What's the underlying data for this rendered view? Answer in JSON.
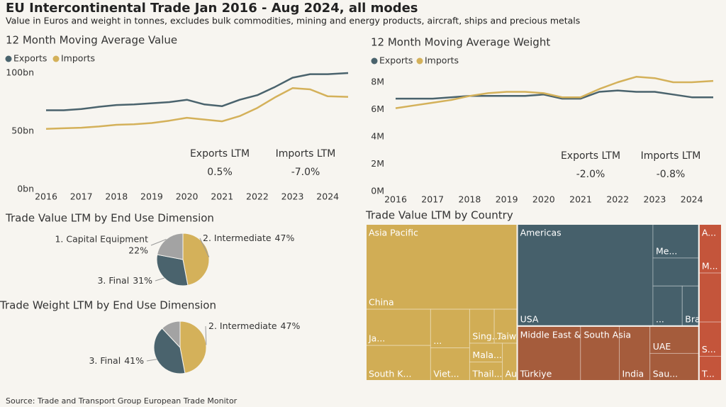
{
  "title": "EU Intercontinental Trade Jan 2016 - Aug 2024, all modes",
  "subtitle": "Value in Euros and weight in tonnes, excludes bulk commodities, mining and energy products, aircraft, ships and precious metals",
  "source": "Source: Trade and Transport Group European Trade Monitor",
  "chart_data": [
    {
      "type": "line",
      "title": "12 Month Moving Average Value",
      "x": [
        2016,
        2016.5,
        2017,
        2017.5,
        2018,
        2018.5,
        2019,
        2019.5,
        2020,
        2020.5,
        2021,
        2021.5,
        2022,
        2022.5,
        2023,
        2023.5,
        2024,
        2024.58
      ],
      "xlim": [
        2016,
        2024.6
      ],
      "xticks": [
        2016,
        2017,
        2018,
        2019,
        2020,
        2021,
        2022,
        2023,
        2024
      ],
      "ylim": [
        0,
        100
      ],
      "yticks": [
        {
          "value": 0,
          "label": "0bn"
        },
        {
          "value": 50,
          "label": "50bn"
        },
        {
          "value": 100,
          "label": "100bn"
        }
      ],
      "series": [
        {
          "name": "Exports",
          "color": "#4a636d",
          "values": [
            68,
            68,
            69,
            71,
            72.5,
            73,
            74,
            75,
            77,
            73,
            71.5,
            77,
            81,
            88,
            96,
            99,
            99,
            100
          ]
        },
        {
          "name": "Imports",
          "color": "#d4b15a",
          "values": [
            52,
            52.5,
            53,
            54,
            55.5,
            56,
            57,
            59,
            61.5,
            60,
            58.5,
            63,
            70,
            79,
            87,
            86,
            80,
            79.5
          ]
        }
      ],
      "annotations": [
        {
          "label": "Exports LTM",
          "value": 0.5,
          "value_label": "0.5%"
        },
        {
          "label": "Imports LTM",
          "value": -7.0,
          "value_label": "-7.0%"
        }
      ]
    },
    {
      "type": "line",
      "title": "12 Month Moving Average Weight",
      "x": [
        2016,
        2016.5,
        2017,
        2017.5,
        2018,
        2018.5,
        2019,
        2019.5,
        2020,
        2020.5,
        2021,
        2021.5,
        2022,
        2022.5,
        2023,
        2023.5,
        2024,
        2024.58
      ],
      "xlim": [
        2016,
        2024.6
      ],
      "xticks": [
        2016,
        2017,
        2018,
        2019,
        2020,
        2021,
        2022,
        2023,
        2024
      ],
      "ylim": [
        0,
        8.8
      ],
      "yticks": [
        {
          "value": 0,
          "label": "0M"
        },
        {
          "value": 2,
          "label": "2M"
        },
        {
          "value": 4,
          "label": "4M"
        },
        {
          "value": 6,
          "label": "6M"
        },
        {
          "value": 8,
          "label": "8M"
        }
      ],
      "series": [
        {
          "name": "Exports",
          "color": "#4a636d",
          "values": [
            6.8,
            6.8,
            6.8,
            6.9,
            7.0,
            7.0,
            7.0,
            7.0,
            7.1,
            6.8,
            6.8,
            7.3,
            7.4,
            7.3,
            7.3,
            7.1,
            6.9,
            6.9
          ]
        },
        {
          "name": "Imports",
          "color": "#d4b15a",
          "values": [
            6.1,
            6.3,
            6.5,
            6.7,
            7.0,
            7.2,
            7.3,
            7.3,
            7.2,
            6.9,
            6.9,
            7.5,
            8.0,
            8.4,
            8.3,
            8.0,
            8.0,
            8.1
          ]
        }
      ],
      "annotations": [
        {
          "label": "Exports LTM",
          "value": -2.0,
          "value_label": "-2.0%"
        },
        {
          "label": "Imports LTM",
          "value": -0.8,
          "value_label": "-0.8%"
        }
      ]
    },
    {
      "type": "pie",
      "title": "Trade Value LTM by End Use Dimension",
      "categories": [
        "2. Intermediate",
        "3. Final",
        "1. Capital Equipment"
      ],
      "values": [
        47,
        31,
        22
      ],
      "value_labels": [
        "47%",
        "31%",
        "22%"
      ],
      "colors": [
        "#d4b15a",
        "#4a636d",
        "#a3a3a3"
      ]
    },
    {
      "type": "pie",
      "title": "Trade Weight LTM by End Use Dimension",
      "categories": [
        "2. Intermediate",
        "3. Final",
        null
      ],
      "values": [
        47,
        41,
        12
      ],
      "value_labels": [
        "47%",
        "41%",
        null
      ],
      "colors": [
        "#d4b15a",
        "#4a636d",
        "#a3a3a3"
      ]
    },
    {
      "type": "treemap",
      "title": "Trade Value LTM by Country",
      "series": [
        {
          "name": "Asia Pacific",
          "color": "#d1ad55",
          "categories": [
            "China",
            "Ja...",
            "South K...",
            "...",
            "Viet...",
            "Sing...",
            "Taiwan",
            "Mala...",
            "Thail...",
            "Aus..."
          ],
          "values": [
            231,
            42,
            41,
            27,
            23,
            15,
            14,
            11,
            11,
            10
          ]
        },
        {
          "name": "Americas",
          "color": "#46606b",
          "categories": [
            "USA",
            "Me...",
            null,
            "...",
            "Brazil"
          ],
          "values": [
            248,
            28,
            23,
            21,
            12
          ]
        },
        {
          "name": "Middle East & South Asia",
          "color": "#a55c3c",
          "categories": [
            "Türkiye",
            null,
            "India",
            "UAE",
            "Sau..."
          ],
          "values": [
            62,
            38,
            30,
            24,
            24
          ]
        },
        {
          "name": "A...",
          "color": "#c4553b",
          "categories": [
            "M...",
            null,
            "S...",
            "T..."
          ],
          "values": [
            20,
            20,
            14,
            10
          ]
        }
      ]
    }
  ]
}
